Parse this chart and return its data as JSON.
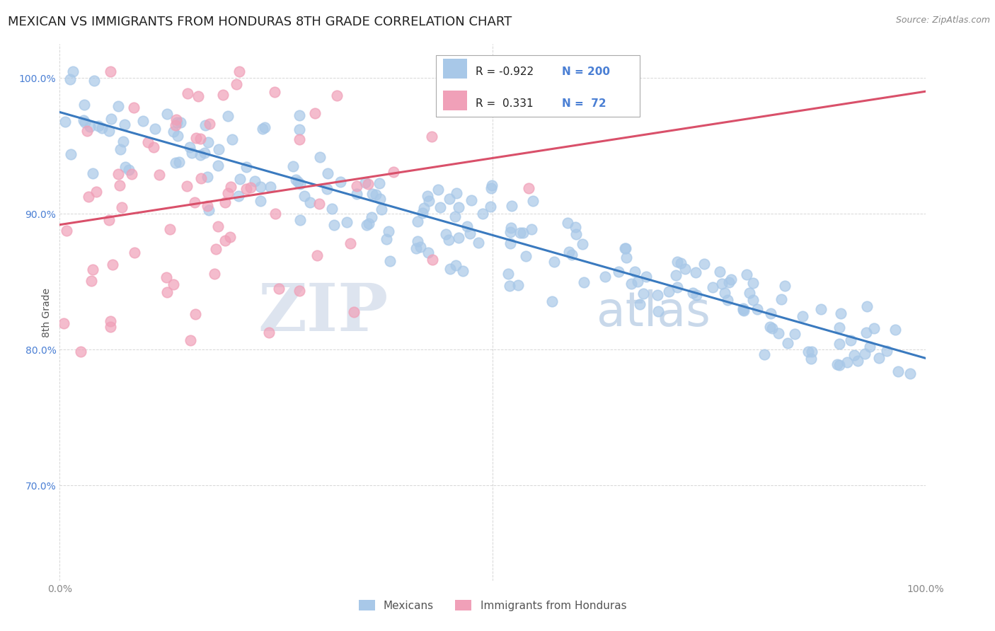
{
  "title": "MEXICAN VS IMMIGRANTS FROM HONDURAS 8TH GRADE CORRELATION CHART",
  "source": "Source: ZipAtlas.com",
  "ylabel": "8th Grade",
  "watermark_zip": "ZIP",
  "watermark_atlas": "atlas",
  "legend_blue_R": "-0.922",
  "legend_blue_N": "200",
  "legend_pink_R": "0.331",
  "legend_pink_N": "72",
  "xlim": [
    0.0,
    1.0
  ],
  "ylim": [
    0.63,
    1.025
  ],
  "ytick_positions": [
    0.7,
    0.8,
    0.9,
    1.0
  ],
  "ytick_labels": [
    "70.0%",
    "80.0%",
    "90.0%",
    "100.0%"
  ],
  "blue_circle_color": "#a8c8e8",
  "pink_circle_color": "#f0a0b8",
  "blue_line_color": "#3a7abf",
  "pink_line_color": "#d9506a",
  "title_fontsize": 13,
  "axis_label_fontsize": 10,
  "tick_fontsize": 10,
  "background_color": "#ffffff",
  "grid_color": "#cccccc",
  "ytick_color": "#4a7fd4",
  "xtick_color": "#888888"
}
